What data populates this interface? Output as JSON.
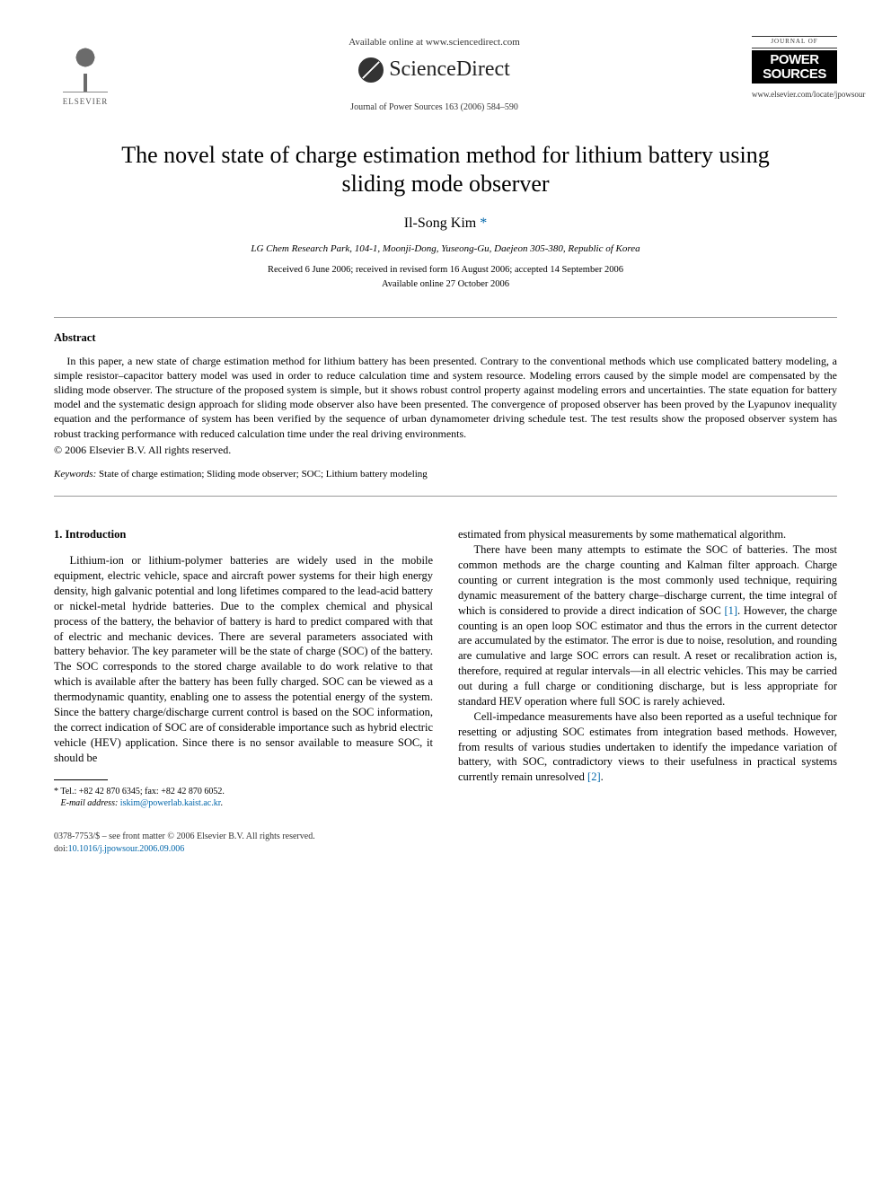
{
  "header": {
    "publisher_name": "ELSEVIER",
    "available_online": "Available online at www.sciencedirect.com",
    "sciencedirect": "ScienceDirect",
    "journal_ref": "Journal of Power Sources 163 (2006) 584–590",
    "journal_small": "JOURNAL OF",
    "journal_big_1": "POWER",
    "journal_big_2": "SOURCES",
    "journal_url": "www.elsevier.com/locate/jpowsour"
  },
  "title": "The novel state of charge estimation method for lithium battery using sliding mode observer",
  "author": "Il-Song Kim",
  "author_marker": "*",
  "affiliation": "LG Chem Research Park, 104-1, Moonji-Dong, Yuseong-Gu, Daejeon 305-380, Republic of Korea",
  "dates_1": "Received 6 June 2006; received in revised form 16 August 2006; accepted 14 September 2006",
  "dates_2": "Available online 27 October 2006",
  "abstract": {
    "heading": "Abstract",
    "text": "In this paper, a new state of charge estimation method for lithium battery has been presented. Contrary to the conventional methods which use complicated battery modeling, a simple resistor–capacitor battery model was used in order to reduce calculation time and system resource. Modeling errors caused by the simple model are compensated by the sliding mode observer. The structure of the proposed system is simple, but it shows robust control property against modeling errors and uncertainties. The state equation for battery model and the systematic design approach for sliding mode observer also have been presented. The convergence of proposed observer has been proved by the Lyapunov inequality equation and the performance of system has been verified by the sequence of urban dynamometer driving schedule test. The test results show the proposed observer system has robust tracking performance with reduced calculation time under the real driving environments.",
    "copyright": "© 2006 Elsevier B.V. All rights reserved."
  },
  "keywords": {
    "label": "Keywords:",
    "text": " State of charge estimation; Sliding mode observer; SOC; Lithium battery modeling"
  },
  "section1_heading": "1.  Introduction",
  "col_left": {
    "p1": "Lithium-ion or lithium-polymer batteries are widely used in the mobile equipment, electric vehicle, space and aircraft power systems for their high energy density, high galvanic potential and long lifetimes compared to the lead-acid battery or nickel-metal hydride batteries. Due to the complex chemical and physical process of the battery, the behavior of battery is hard to predict compared with that of electric and mechanic devices. There are several parameters associated with battery behavior. The key parameter will be the state of charge (SOC) of the battery. The SOC corresponds to the stored charge available to do work relative to that which is available after the battery has been fully charged. SOC can be viewed as a thermodynamic quantity, enabling one to assess the potential energy of the system. Since the battery charge/discharge current control is based on the SOC information, the correct indication of SOC are of considerable importance such as hybrid electric vehicle (HEV) application. Since there is no sensor available to measure SOC, it should be"
  },
  "col_right": {
    "p1": "estimated from physical measurements by some mathematical algorithm.",
    "p2a": "There have been many attempts to estimate the SOC of batteries. The most common methods are the charge counting and Kalman filter approach. Charge counting or current integration is the most commonly used technique, requiring dynamic measurement of the battery charge–discharge current, the time integral of which is considered to provide a direct indication of SOC ",
    "ref1": "[1]",
    "p2b": ". However, the charge counting is an open loop SOC estimator and thus the errors in the current detector are accumulated by the estimator. The error is due to noise, resolution, and rounding are cumulative and large SOC errors can result. A reset or recalibration action is, therefore, required at regular intervals—in all electric vehicles. This may be carried out during a full charge or conditioning discharge, but is less appropriate for standard HEV operation where full SOC is rarely achieved.",
    "p3a": "Cell-impedance measurements have also been reported as a useful technique for resetting or adjusting SOC estimates from integration based methods. However, from results of various studies undertaken to identify the impedance variation of battery, with SOC, contradictory views to their usefulness in practical systems currently remain unresolved ",
    "ref2": "[2]",
    "p3b": "."
  },
  "footnote": {
    "tel": "* Tel.: +82 42 870 6345; fax: +82 42 870 6052.",
    "email_label": "E-mail address:",
    "email": "iskim@powerlab.kaist.ac.kr",
    "email_tail": "."
  },
  "footer": {
    "line1": "0378-7753/$ – see front matter © 2006 Elsevier B.V. All rights reserved.",
    "doi_label": "doi:",
    "doi": "10.1016/j.jpowsour.2006.09.006"
  }
}
